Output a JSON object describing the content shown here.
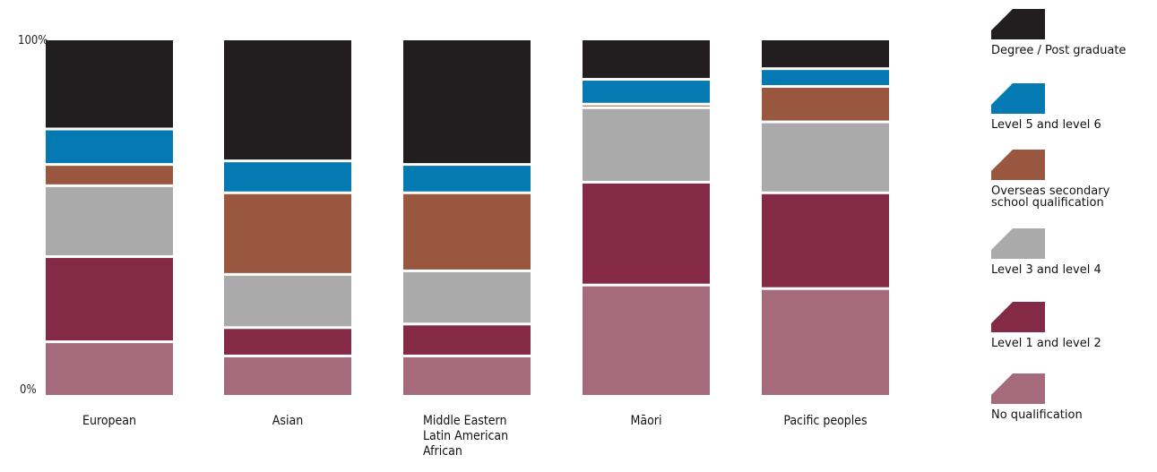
{
  "chart_data": {
    "type": "bar",
    "stacked": true,
    "normalized": true,
    "ylim": [
      0,
      100
    ],
    "yticks": [
      "0%",
      "100%"
    ],
    "categories": [
      "European",
      "Asian",
      "Middle Eastern\nLatin American\nAfrican",
      "Māori",
      "Pacific peoples"
    ],
    "series": [
      {
        "name": "No qualification",
        "color": "#a56b7d",
        "values": [
          15,
          11,
          11,
          31,
          30
        ]
      },
      {
        "name": "Level 1 and level 2",
        "color": "#842a47",
        "values": [
          24,
          8,
          9,
          29,
          27
        ]
      },
      {
        "name": "Level 3 and level 4",
        "color": "#aaaaaa",
        "values": [
          20,
          15,
          15,
          21,
          20
        ]
      },
      {
        "name": "Overseas secondary school qualification",
        "color": "#99573f",
        "values": [
          6,
          23,
          22,
          1,
          10
        ]
      },
      {
        "name": "Level 5 and level 6",
        "color": "#0479b2",
        "values": [
          10,
          9,
          8,
          7,
          5
        ]
      },
      {
        "name": "Degree / Post graduate",
        "color": "#221e1f",
        "values": [
          25,
          34,
          35,
          11,
          8
        ]
      }
    ],
    "legend_position": "right",
    "grid": false
  }
}
